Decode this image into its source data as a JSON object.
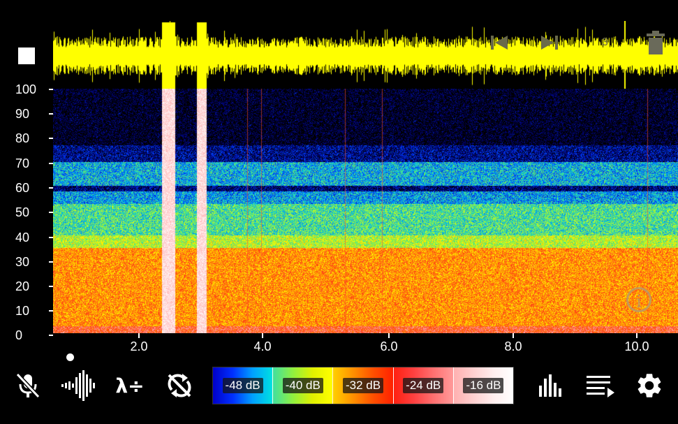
{
  "y_axis": {
    "ticks": [
      "100",
      "90",
      "80",
      "70",
      "60",
      "50",
      "40",
      "30",
      "20",
      "10",
      "0"
    ]
  },
  "x_axis": {
    "ticks": [
      "2.0",
      "4.0",
      "6.0",
      "8.0",
      "10.0"
    ]
  },
  "top_controls": {
    "counter": "3"
  },
  "colorbar": {
    "labels": [
      "-48 dB",
      "-40 dB",
      "-32 dB",
      "-24 dB",
      "-16 dB"
    ]
  },
  "icons": {
    "stop": "stop-icon",
    "prev": "skip-previous-icon",
    "next": "skip-next-icon",
    "delete": "trash-icon",
    "info": "info-icon",
    "mic_off": "mic-off-icon",
    "waveform": "waveform-icon",
    "wavelength": "wavelength-divide-icon",
    "sync_off": "sync-disabled-icon",
    "bar_chart": "bar-chart-icon",
    "playlist": "playlist-play-icon",
    "settings": "gear-icon"
  },
  "colors": {
    "waveform": "#ffff00",
    "info_ring": "#b89a6a"
  }
}
